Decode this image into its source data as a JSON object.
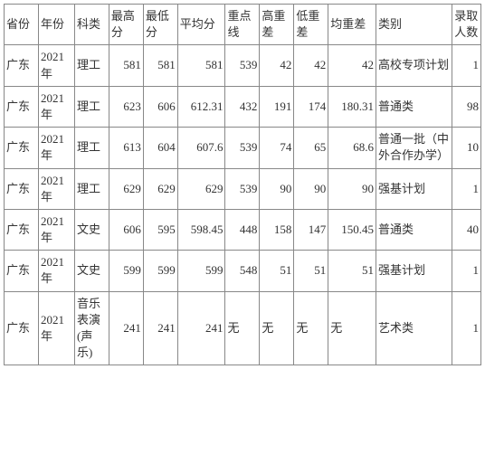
{
  "table": {
    "columns": [
      {
        "key": "province",
        "label": "省份",
        "align": "txt"
      },
      {
        "key": "year",
        "label": "年份",
        "align": "txt"
      },
      {
        "key": "subject",
        "label": "科类",
        "align": "txt"
      },
      {
        "key": "max",
        "label": "最高分",
        "align": "txt"
      },
      {
        "key": "min",
        "label": "最低分",
        "align": "txt"
      },
      {
        "key": "avg",
        "label": "平均分",
        "align": "txt"
      },
      {
        "key": "keyline",
        "label": "重点线",
        "align": "txt"
      },
      {
        "key": "hdiff",
        "label": "高重差",
        "align": "txt"
      },
      {
        "key": "ldiff",
        "label": "低重差",
        "align": "txt"
      },
      {
        "key": "adiff",
        "label": "均重差",
        "align": "txt"
      },
      {
        "key": "category",
        "label": "类别",
        "align": "txt"
      },
      {
        "key": "count",
        "label": "录取人数",
        "align": "txt"
      }
    ],
    "rows": [
      {
        "province": "广东",
        "year": "2021年",
        "subject": "理工",
        "max": "581",
        "min": "581",
        "avg": "581",
        "keyline": "539",
        "hdiff": "42",
        "ldiff": "42",
        "adiff": "42",
        "category": "高校专项计划",
        "count": "1"
      },
      {
        "province": "广东",
        "year": "2021年",
        "subject": "理工",
        "max": "623",
        "min": "606",
        "avg": "612.31",
        "keyline": "432",
        "hdiff": "191",
        "ldiff": "174",
        "adiff": "180.31",
        "category": "普通类",
        "count": "98"
      },
      {
        "province": "广东",
        "year": "2021年",
        "subject": "理工",
        "max": "613",
        "min": "604",
        "avg": "607.6",
        "keyline": "539",
        "hdiff": "74",
        "ldiff": "65",
        "adiff": "68.6",
        "category": "普通一批（中外合作办学）",
        "count": "10"
      },
      {
        "province": "广东",
        "year": "2021年",
        "subject": "理工",
        "max": "629",
        "min": "629",
        "avg": "629",
        "keyline": "539",
        "hdiff": "90",
        "ldiff": "90",
        "adiff": "90",
        "category": "强基计划",
        "count": "1"
      },
      {
        "province": "广东",
        "year": "2021年",
        "subject": "文史",
        "max": "606",
        "min": "595",
        "avg": "598.45",
        "keyline": "448",
        "hdiff": "158",
        "ldiff": "147",
        "adiff": "150.45",
        "category": "普通类",
        "count": "40"
      },
      {
        "province": "广东",
        "year": "2021年",
        "subject": "文史",
        "max": "599",
        "min": "599",
        "avg": "599",
        "keyline": "548",
        "hdiff": "51",
        "ldiff": "51",
        "adiff": "51",
        "category": "强基计划",
        "count": "1"
      },
      {
        "province": "广东",
        "year": "2021年",
        "subject": "音乐表演(声乐)",
        "max": "241",
        "min": "241",
        "avg": "241",
        "keyline": "无",
        "hdiff": "无",
        "ldiff": "无",
        "adiff": "无",
        "category": "艺术类",
        "count": "1"
      }
    ]
  }
}
